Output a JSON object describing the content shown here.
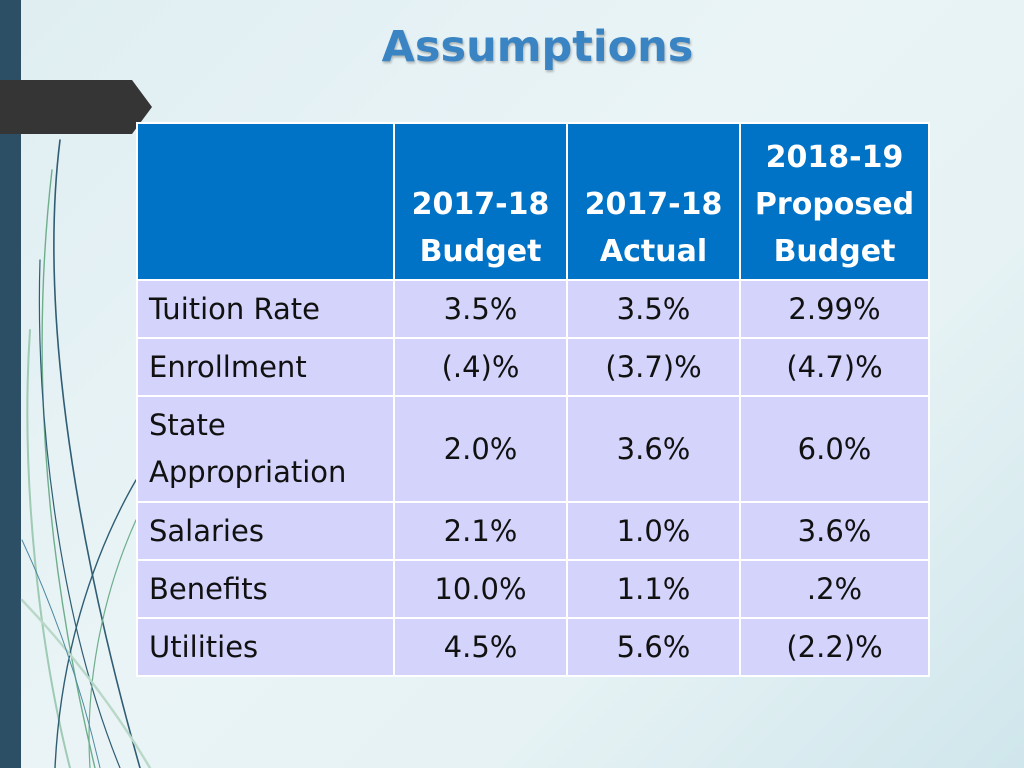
{
  "slide": {
    "title": "Assumptions"
  },
  "theme": {
    "accent": "#3a84c3",
    "header_fill": "#0073c6",
    "cell_fill": "#d3d3fb",
    "left_bar": "#2c4f66"
  },
  "table": {
    "headers": [
      "",
      "2017-18 Budget",
      "2017-18 Actual",
      "2018-19 Proposed Budget"
    ],
    "rows": [
      {
        "label": "Tuition Rate",
        "budget_2017_18": "3.5%",
        "actual_2017_18": "3.5%",
        "proposed_2018_19": "2.99%"
      },
      {
        "label": "Enrollment",
        "budget_2017_18": "(.4)%",
        "actual_2017_18": "(3.7)%",
        "proposed_2018_19": "(4.7)%"
      },
      {
        "label": "State Appropriation",
        "budget_2017_18": "2.0%",
        "actual_2017_18": "3.6%",
        "proposed_2018_19": "6.0%"
      },
      {
        "label": "Salaries",
        "budget_2017_18": "2.1%",
        "actual_2017_18": "1.0%",
        "proposed_2018_19": "3.6%"
      },
      {
        "label": "Benefits",
        "budget_2017_18": "10.0%",
        "actual_2017_18": "1.1%",
        "proposed_2018_19": ".2%"
      },
      {
        "label": "Utilities",
        "budget_2017_18": "4.5%",
        "actual_2017_18": "5.6%",
        "proposed_2018_19": "(2.2)%"
      }
    ]
  }
}
